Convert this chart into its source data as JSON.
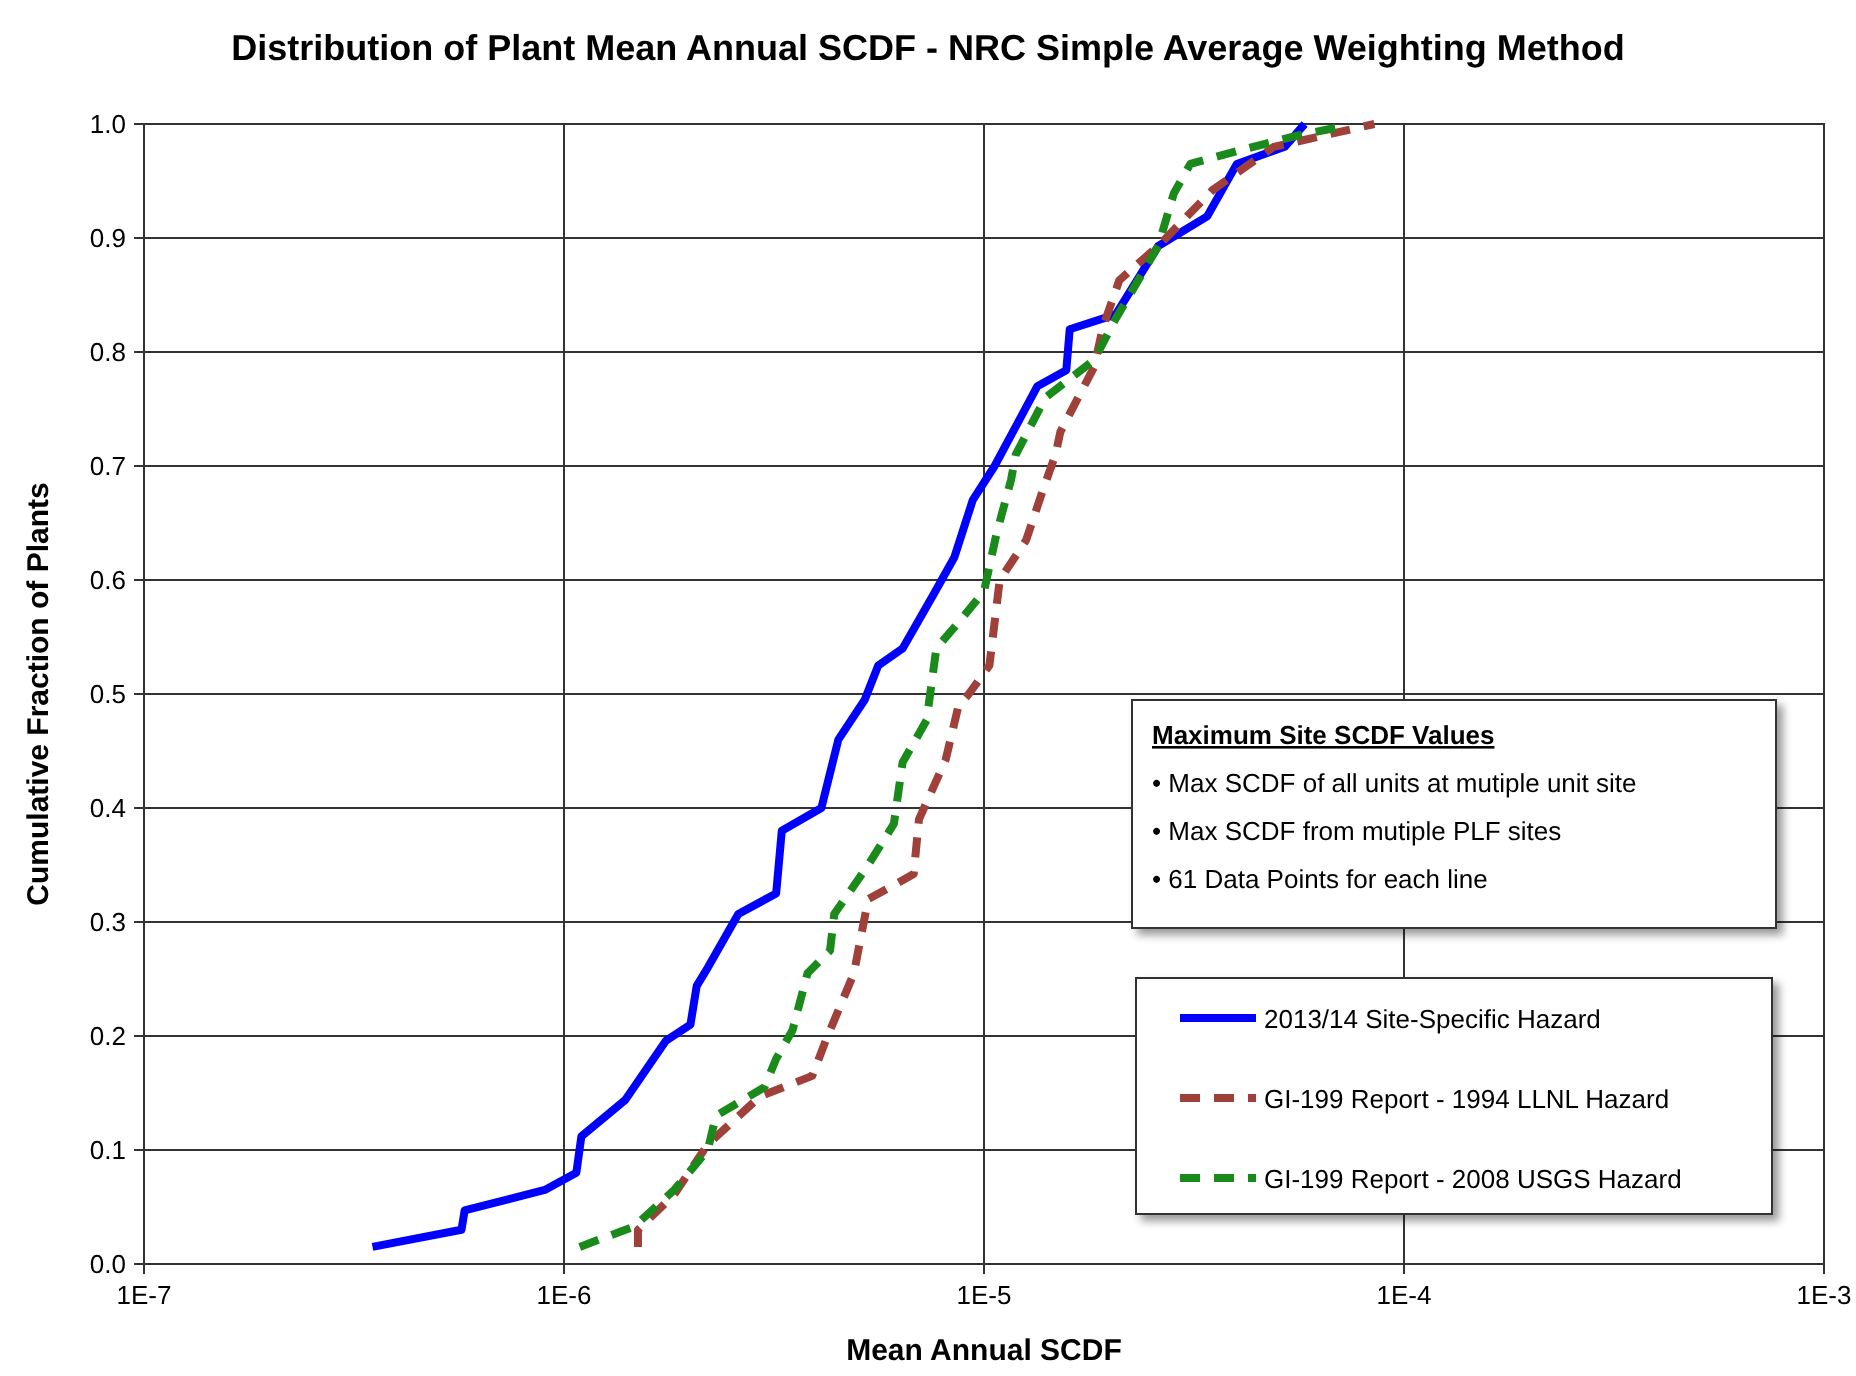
{
  "chart_data": {
    "type": "line",
    "title": "Distribution of Plant Mean Annual SCDF - NRC Simple Average Weighting Method",
    "xlabel": "Mean Annual  SCDF",
    "ylabel": "Cumulative Fraction of Plants",
    "log": "x",
    "grid": true,
    "legend": "bottom right",
    "marker": "none",
    "xlim": [
      1e-07,
      0.001
    ],
    "xticks": [
      {
        "value": 1e-07,
        "label": "1E-7"
      },
      {
        "value": 1e-06,
        "label": "1E-6"
      },
      {
        "value": 1e-05,
        "label": "1E-5"
      },
      {
        "value": 0.0001,
        "label": "1E-4"
      },
      {
        "value": 0.001,
        "label": "1E-3"
      }
    ],
    "ylim": [
      0,
      1
    ],
    "yticks": [
      {
        "value": 0,
        "label": "0.0"
      },
      0.1,
      0.2,
      0.3,
      0.4,
      0.5,
      0.6,
      0.7,
      0.8,
      0.9,
      {
        "value": 1,
        "label": "1.0"
      }
    ],
    "annotations": [
      "Maximum Site SCDF Values",
      "• Max SCDF of all units at mutiple unit site",
      "• Max SCDF from mutiple PLF sites",
      "• 61 Data Points for each line"
    ],
    "series": [
      {
        "name": "2013/14 Site-Specific Hazard",
        "color": "#0000ff",
        "line_style": "solid",
        "x": [
          3.5e-07,
          5.7e-07,
          5.8e-07,
          9e-07,
          1.07e-06,
          1.1e-06,
          1.4e-06,
          1.75e-06,
          2e-06,
          2.07e-06,
          2.2e-06,
          2.6e-06,
          3.2e-06,
          3.3e-06,
          4.1e-06,
          4.5e-06,
          5.2e-06,
          5.6e-06,
          6.4e-06,
          7.6e-06,
          8.5e-06,
          9.4e-06,
          1.06e-05,
          1.34e-05,
          1.57e-05,
          1.6e-05,
          2.06e-05,
          2.6e-05,
          3.4e-05,
          4e-05,
          5.2e-05,
          5.8e-05
        ],
        "values": [
          0.015,
          0.03,
          0.047,
          0.065,
          0.08,
          0.112,
          0.144,
          0.196,
          0.21,
          0.244,
          0.26,
          0.307,
          0.325,
          0.38,
          0.4,
          0.46,
          0.495,
          0.525,
          0.54,
          0.588,
          0.62,
          0.67,
          0.7,
          0.77,
          0.784,
          0.82,
          0.833,
          0.893,
          0.919,
          0.965,
          0.98,
          1.0
        ]
      },
      {
        "name": "GI-199 Report - 1994 LLNL Hazard",
        "color": "#a0403a",
        "line_style": "dashed",
        "x": [
          1.5e-06,
          1.5e-06,
          1.83e-06,
          2.2e-06,
          2.93e-06,
          3.9e-06,
          4.2e-06,
          4.9e-06,
          5.3e-06,
          6.8e-06,
          7e-06,
          8.1e-06,
          8.7e-06,
          9.2e-06,
          1.03e-05,
          1.09e-05,
          1.26e-05,
          1.39e-05,
          1.48e-05,
          1.52e-05,
          1.83e-05,
          1.92e-05,
          2.1e-05,
          2.6e-05,
          3.5e-05,
          4.9e-05,
          8.5e-05
        ],
        "values": [
          0.015,
          0.03,
          0.061,
          0.105,
          0.147,
          0.165,
          0.196,
          0.255,
          0.32,
          0.342,
          0.39,
          0.442,
          0.49,
          0.5,
          0.525,
          0.6,
          0.635,
          0.682,
          0.71,
          0.73,
          0.787,
          0.822,
          0.863,
          0.893,
          0.942,
          0.98,
          1.0
        ]
      },
      {
        "name": "GI-199 Report - 2008 USGS Hazard",
        "color": "#1a8a1a",
        "line_style": "dashed",
        "x": [
          1.09e-06,
          1.47e-06,
          1.83e-06,
          2.2e-06,
          2.3e-06,
          3e-06,
          3.2e-06,
          3.5e-06,
          3.8e-06,
          4.3e-06,
          4.4e-06,
          5.3e-06,
          6.1e-06,
          6.4e-06,
          7.3e-06,
          7.7e-06,
          8.8e-06,
          1e-05,
          1.07e-05,
          1.16e-05,
          1.19e-05,
          1.4e-05,
          1.83e-05,
          2.05e-05,
          2.6e-05,
          2.83e-05,
          3.1e-05,
          4.07e-05,
          5.6e-05,
          7.2e-05
        ],
        "values": [
          0.015,
          0.033,
          0.065,
          0.1,
          0.13,
          0.155,
          0.18,
          0.205,
          0.255,
          0.275,
          0.307,
          0.35,
          0.386,
          0.44,
          0.477,
          0.54,
          0.565,
          0.59,
          0.64,
          0.688,
          0.71,
          0.76,
          0.793,
          0.828,
          0.893,
          0.939,
          0.965,
          0.977,
          0.99,
          0.998
        ]
      }
    ]
  }
}
